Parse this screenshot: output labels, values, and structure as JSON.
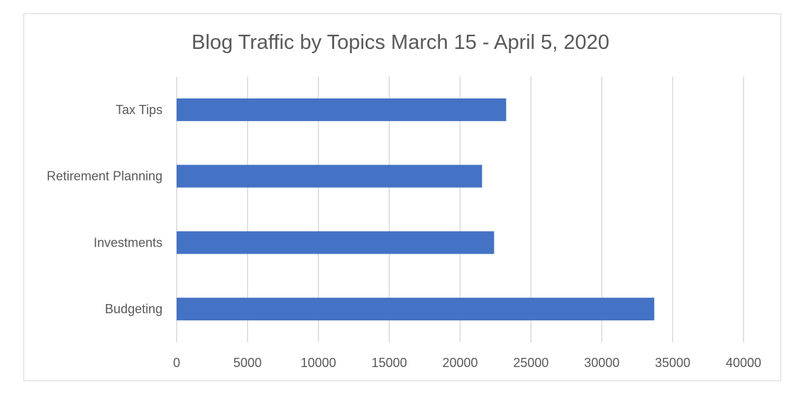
{
  "chart_data": {
    "type": "bar",
    "orientation": "horizontal",
    "title": "Blog Traffic by Topics March 15 - April 5, 2020",
    "xlabel": "",
    "ylabel": "",
    "categories": [
      "Tax Tips",
      "Retirement Planning",
      "Investments",
      "Budgeting"
    ],
    "values": [
      23250,
      21550,
      22400,
      33700
    ],
    "xlim": [
      0,
      40000
    ],
    "x_ticks": [
      "0",
      "5000",
      "10000",
      "15000",
      "20000",
      "25000",
      "30000",
      "35000",
      "40000"
    ],
    "grid": true,
    "legend": "none",
    "bar_color": "#4472c4",
    "grid_color": "#d9d9d9",
    "text_color": "#595959"
  }
}
